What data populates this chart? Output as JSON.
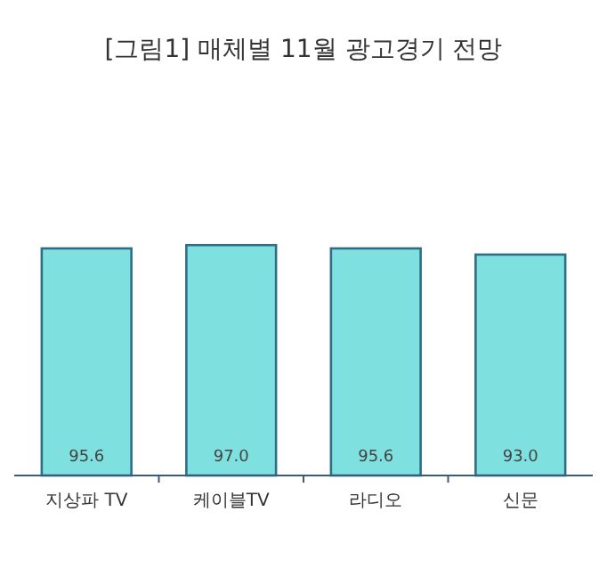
{
  "chart_data": {
    "type": "bar",
    "title": "[그림1] 매체별 11월 광고경기 전망",
    "categories": [
      "지상파 TV",
      "케이블TV",
      "라디오",
      "신문"
    ],
    "values": [
      95.6,
      97.0,
      95.6,
      93.0
    ],
    "value_labels": [
      "95.6",
      "97.0",
      "95.6",
      "93.0"
    ],
    "color": "#7fe0e0"
  }
}
